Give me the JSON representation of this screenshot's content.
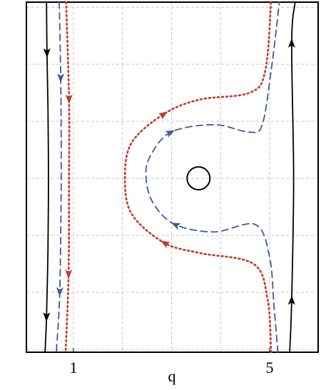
{
  "chart_data": {
    "type": "line",
    "xlabel": "q",
    "xlim": [
      0.04,
      5.99
    ],
    "ylim": [
      -3.05,
      3.09
    ],
    "xticks": [
      1,
      5
    ],
    "xgrid": [
      1,
      2,
      3,
      4,
      5
    ],
    "ygrid": [
      -3,
      -2,
      -1,
      0,
      1,
      2,
      3
    ],
    "grid": true,
    "series": [
      {
        "color": "#000000",
        "style": "solid",
        "x": [
          0.45,
          0.46,
          0.48,
          0.49,
          0.48,
          0.45,
          0.42
        ],
        "y": [
          3.09,
          2.19,
          1.25,
          0,
          -1.25,
          -2.44,
          -3.05
        ]
      },
      {
        "color": "#3b5b9a",
        "style": "dashed",
        "x": [
          0.71,
          0.74,
          0.75,
          0.72,
          0.65
        ],
        "y": [
          3.09,
          1.75,
          0,
          -2,
          -3.05
        ]
      },
      {
        "color": "#c0392b",
        "style": "dotted",
        "x": [
          0.85,
          0.91,
          0.91,
          0.9,
          0.84
        ],
        "y": [
          3.09,
          1.38,
          0,
          -1.69,
          -3.05
        ]
      },
      {
        "color": "#000000",
        "style": "solid",
        "x": [
          5.41,
          5.45,
          5.49,
          5.45,
          5.52
        ],
        "y": [
          -3.05,
          -2.13,
          0,
          2.38,
          3.09
        ]
      },
      {
        "color": "#3b5b9a",
        "style": "dashed",
        "x": [
          5.17,
          5.09,
          5.0,
          4.71,
          3.87,
          3.07,
          2.63,
          2.48,
          2.56,
          2.99,
          3.87,
          4.59,
          4.85,
          5.03,
          5.2
        ],
        "y": [
          -3.05,
          -2.25,
          -1.38,
          -0.81,
          -0.94,
          -0.81,
          -0.44,
          0,
          0.38,
          0.81,
          0.94,
          0.81,
          0.94,
          1.88,
          3.09
        ]
      },
      {
        "color": "#c0392b",
        "style": "dotted",
        "x": [
          5.03,
          4.96,
          4.67,
          3.57,
          2.85,
          2.19,
          2.05,
          2.19,
          2.85,
          3.57,
          4.59,
          4.91,
          5.03
        ],
        "y": [
          -3.05,
          -2.13,
          -1.5,
          -1.31,
          -1.13,
          -0.63,
          0,
          0.63,
          1.13,
          1.38,
          1.5,
          1.88,
          3.09
        ]
      },
      {
        "color": "#000000",
        "style": "circle",
        "x": [
          3.55
        ],
        "y": [
          0
        ]
      }
    ]
  }
}
